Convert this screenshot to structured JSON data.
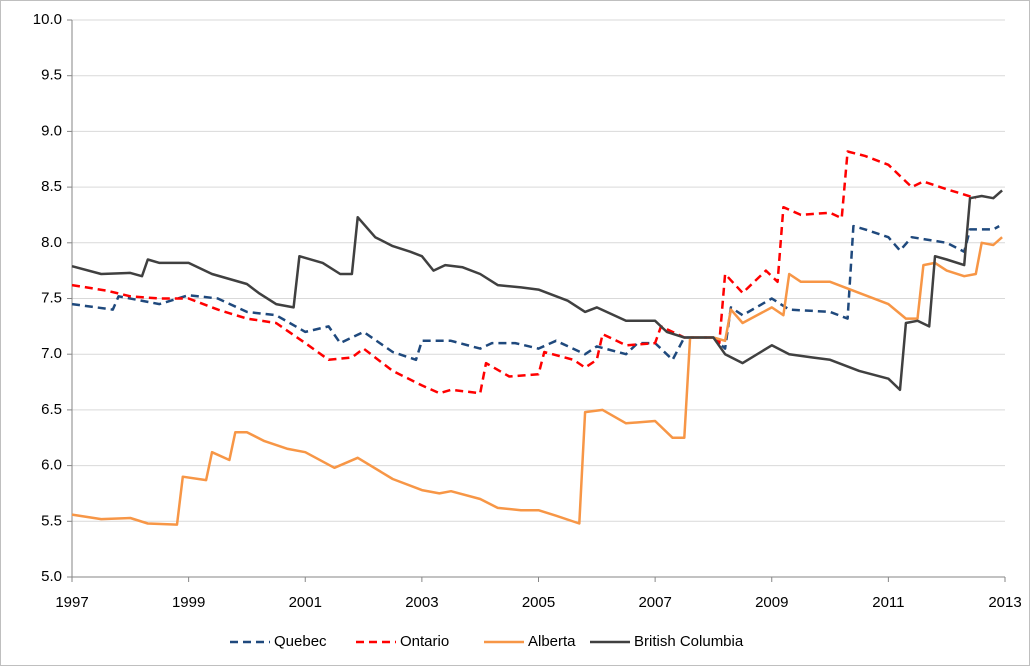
{
  "chart_data": {
    "type": "line",
    "xlim": [
      1997,
      2013
    ],
    "xticks": [
      1997,
      1999,
      2001,
      2003,
      2005,
      2007,
      2009,
      2011,
      2013
    ],
    "ylim": [
      5,
      10
    ],
    "yticks": [
      {
        "value": 5,
        "label": "5.0"
      },
      {
        "value": 5.5,
        "label": "5.5"
      },
      {
        "value": 6,
        "label": "6.0"
      },
      {
        "value": 6.5,
        "label": "6.5"
      },
      {
        "value": 7,
        "label": "7.0"
      },
      {
        "value": 7.5,
        "label": "7.5"
      },
      {
        "value": 8,
        "label": "8.0"
      },
      {
        "value": 8.5,
        "label": "8.5"
      },
      {
        "value": 9,
        "label": "9.0"
      },
      {
        "value": 9.5,
        "label": "9.5"
      },
      {
        "value": 10,
        "label": "10.0"
      }
    ],
    "grid": true,
    "legend": "bottom",
    "series": [
      {
        "name": "Quebec",
        "color": "#1f497d",
        "dash": true,
        "x": [
          1997,
          1997.7,
          1997.8,
          1998.5,
          1999,
          1999.5,
          2000,
          2000.5,
          2001,
          2001.4,
          2001.6,
          2002,
          2002.5,
          2002.9,
          2003,
          2003.5,
          2004,
          2004.2,
          2004.6,
          2005,
          2005.3,
          2005.8,
          2006,
          2006.5,
          2006.7,
          2007,
          2007.3,
          2007.5,
          2008,
          2008.2,
          2008.3,
          2008.5,
          2009,
          2009.3,
          2010,
          2010.3,
          2010.4,
          2010.6,
          2011,
          2011.2,
          2011.4,
          2012,
          2012.3,
          2012.4,
          2012.8,
          2012.9
        ],
        "values": [
          7.45,
          7.4,
          7.52,
          7.45,
          7.53,
          7.5,
          7.38,
          7.35,
          7.2,
          7.25,
          7.1,
          7.2,
          7.02,
          6.95,
          7.12,
          7.12,
          7.05,
          7.1,
          7.1,
          7.05,
          7.12,
          7.0,
          7.07,
          7.0,
          7.1,
          7.1,
          6.95,
          7.15,
          7.15,
          7.05,
          7.42,
          7.35,
          7.5,
          7.4,
          7.38,
          7.32,
          8.15,
          8.12,
          8.05,
          7.93,
          8.05,
          8.0,
          7.92,
          8.12,
          8.12,
          8.15
        ]
      },
      {
        "name": "Ontario",
        "color": "#ff0000",
        "dash": true,
        "x": [
          1997,
          1997.6,
          1998,
          1998.5,
          1999,
          1999.5,
          2000,
          2000.5,
          2001,
          2001.4,
          2001.8,
          2002,
          2002.5,
          2003,
          2003.3,
          2003.5,
          2004,
          2004.1,
          2004.5,
          2005,
          2005.1,
          2005.6,
          2005.8,
          2006,
          2006.1,
          2006.5,
          2007,
          2007.1,
          2007.5,
          2008,
          2008.1,
          2008.2,
          2008.5,
          2008.9,
          2009.1,
          2009.2,
          2009.5,
          2010,
          2010.2,
          2010.3,
          2010.6,
          2011,
          2011.4,
          2011.6,
          2012,
          2012.2,
          2012.5
        ],
        "values": [
          7.62,
          7.57,
          7.52,
          7.5,
          7.5,
          7.4,
          7.32,
          7.28,
          7.1,
          6.95,
          6.97,
          7.05,
          6.85,
          6.72,
          6.65,
          6.68,
          6.65,
          6.92,
          6.8,
          6.82,
          7.02,
          6.95,
          6.88,
          6.95,
          7.18,
          7.08,
          7.1,
          7.25,
          7.15,
          7.15,
          7.1,
          7.72,
          7.55,
          7.75,
          7.65,
          8.32,
          8.25,
          8.27,
          8.22,
          8.82,
          8.78,
          8.7,
          8.5,
          8.55,
          8.48,
          8.45,
          8.4
        ]
      },
      {
        "name": "Alberta",
        "color": "#f79646",
        "dash": false,
        "x": [
          1997,
          1997.5,
          1998,
          1998.3,
          1998.8,
          1998.9,
          1999.3,
          1999.4,
          1999.7,
          1999.8,
          2000,
          2000.3,
          2000.7,
          2001,
          2001.5,
          2001.9,
          2002.5,
          2003,
          2003.3,
          2003.5,
          2004,
          2004.3,
          2004.7,
          2005,
          2005.3,
          2005.7,
          2005.8,
          2006.1,
          2006.5,
          2007,
          2007.3,
          2007.5,
          2007.6,
          2008,
          2008.2,
          2008.3,
          2008.5,
          2009,
          2009.2,
          2009.3,
          2009.5,
          2010,
          2010.5,
          2011,
          2011.3,
          2011.5,
          2011.6,
          2011.8,
          2012,
          2012.3,
          2012.5,
          2012.6,
          2012.8,
          2012.95
        ],
        "values": [
          5.56,
          5.52,
          5.53,
          5.48,
          5.47,
          5.9,
          5.87,
          6.12,
          6.05,
          6.3,
          6.3,
          6.22,
          6.15,
          6.12,
          5.98,
          6.07,
          5.88,
          5.78,
          5.75,
          5.77,
          5.7,
          5.62,
          5.6,
          5.6,
          5.55,
          5.48,
          6.48,
          6.5,
          6.38,
          6.4,
          6.25,
          6.25,
          7.15,
          7.15,
          7.12,
          7.4,
          7.28,
          7.42,
          7.35,
          7.72,
          7.65,
          7.65,
          7.55,
          7.45,
          7.32,
          7.32,
          7.8,
          7.82,
          7.75,
          7.7,
          7.72,
          8.0,
          7.98,
          8.05
        ]
      },
      {
        "name": "British Columbia",
        "color": "#404040",
        "dash": false,
        "x": [
          1997,
          1997.5,
          1998,
          1998.2,
          1998.3,
          1998.5,
          1999,
          1999.4,
          2000,
          2000.2,
          2000.5,
          2000.8,
          2000.9,
          2001.3,
          2001.6,
          2001.8,
          2001.9,
          2002.2,
          2002.5,
          2002.8,
          2003,
          2003.2,
          2003.4,
          2003.7,
          2004,
          2004.3,
          2004.7,
          2005,
          2005.5,
          2005.8,
          2006,
          2006.5,
          2007,
          2007.2,
          2007.5,
          2008,
          2008.2,
          2008.5,
          2009,
          2009.3,
          2009.7,
          2010,
          2010.5,
          2011,
          2011.2,
          2011.3,
          2011.5,
          2011.7,
          2011.8,
          2012,
          2012.3,
          2012.4,
          2012.6,
          2012.8,
          2012.95
        ],
        "values": [
          7.79,
          7.72,
          7.73,
          7.7,
          7.85,
          7.82,
          7.82,
          7.72,
          7.63,
          7.55,
          7.45,
          7.42,
          7.88,
          7.82,
          7.72,
          7.72,
          8.23,
          8.05,
          7.97,
          7.92,
          7.88,
          7.75,
          7.8,
          7.78,
          7.72,
          7.62,
          7.6,
          7.58,
          7.48,
          7.38,
          7.42,
          7.3,
          7.3,
          7.2,
          7.15,
          7.15,
          7.0,
          6.92,
          7.08,
          7.0,
          6.97,
          6.95,
          6.85,
          6.78,
          6.68,
          7.28,
          7.3,
          7.25,
          7.88,
          7.85,
          7.8,
          8.4,
          8.42,
          8.4,
          8.47
        ]
      }
    ]
  }
}
